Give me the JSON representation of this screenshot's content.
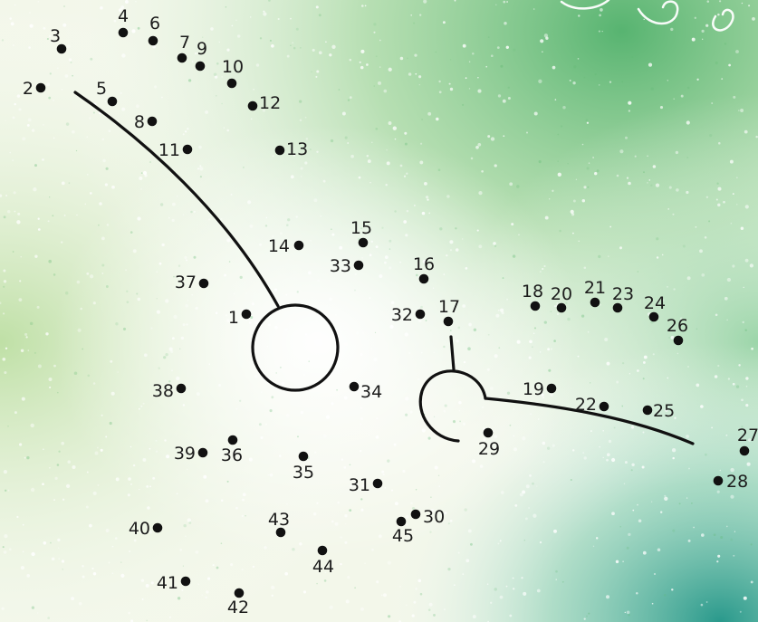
{
  "puzzle": {
    "dot_labels": [
      "1",
      "2",
      "3",
      "4",
      "5",
      "6",
      "7",
      "8",
      "9",
      "10",
      "11",
      "12",
      "13",
      "14",
      "15",
      "16",
      "17",
      "18",
      "19",
      "20",
      "21",
      "22",
      "23",
      "24",
      "25",
      "26",
      "27",
      "28",
      "29",
      "30",
      "31",
      "32",
      "33",
      "34",
      "35",
      "36",
      "37",
      "38",
      "39",
      "40",
      "41",
      "42",
      "43",
      "44",
      "45"
    ]
  },
  "colors": {
    "background": "#eef4e4",
    "green_tint": "#5fb870",
    "teal_tint": "#2f9a8c",
    "ink": "#111111",
    "sparkle": "#ffffff",
    "skin": "#c88a6a"
  },
  "icons": {
    "decoration": "swirl-icon"
  }
}
